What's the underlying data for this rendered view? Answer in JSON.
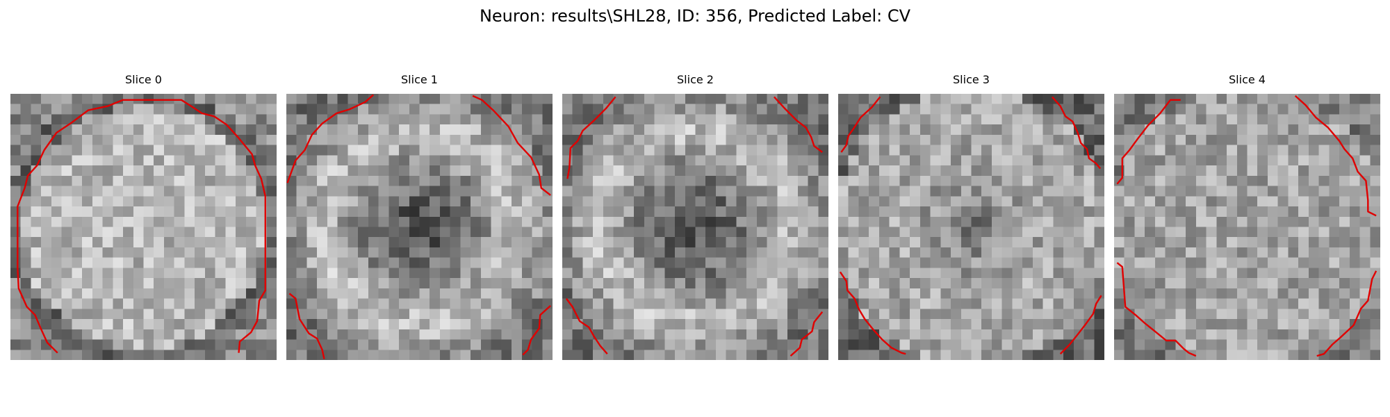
{
  "figure": {
    "title": "Neuron: results\\SHL28, ID: 356, Predicted Label: CV"
  },
  "colors": {
    "background": "#ffffff",
    "contour": "#e00000"
  },
  "colormap": "gray",
  "grid_size": 26,
  "panels": [
    {
      "title": "Slice 0"
    },
    {
      "title": "Slice 1"
    },
    {
      "title": "Slice 2"
    },
    {
      "title": "Slice 3"
    },
    {
      "title": "Slice 4"
    }
  ]
}
